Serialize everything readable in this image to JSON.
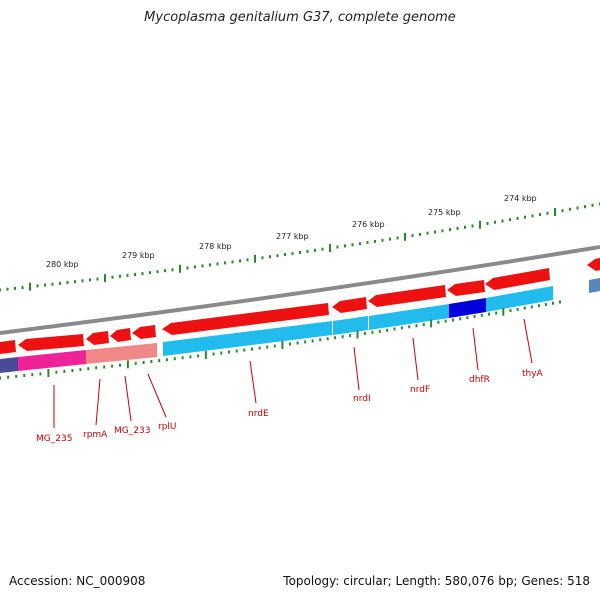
{
  "title": "Mycoplasma genitalium G37, complete genome",
  "footer": {
    "accession": "Accession: NC_000908",
    "summary": "Topology: circular; Length: 580,076 bp; Genes: 518"
  },
  "kbp_labels": [
    "280 kbp",
    "279 kbp",
    "278 kbp",
    "277 kbp",
    "276 kbp",
    "275 kbp",
    "274 kbp"
  ],
  "gene_labels": [
    "MG_235",
    "rpmA",
    "MG_233",
    "rplU",
    "nrdE",
    "nrdI",
    "nrdF",
    "dhfR",
    "thyA"
  ],
  "colors": {
    "backbone": "#8a8a8a",
    "cds": "#ee1111",
    "gene_cyan": "#22bbee",
    "gene_blue": "#0000dd",
    "gene_pink": "#ee2299",
    "gene_salmon": "#f08888",
    "tick": "#2a8a2a",
    "label": "#cc0000"
  }
}
